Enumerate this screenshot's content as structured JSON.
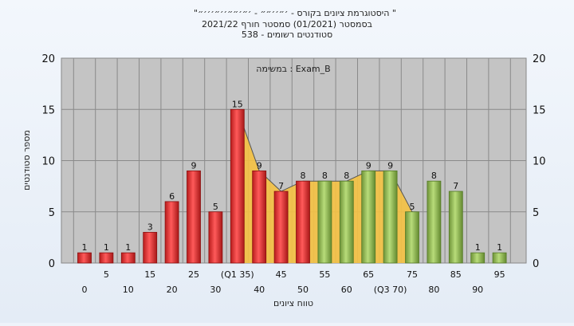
{
  "chart_data": {
    "type": "bar",
    "title_lines": [
      "\"היסטוגרמת ציונים בקורס - ׳״׳׳״״ - ׳״׳״״׳׳״׳׳׳״ \"",
      "בסמסטר  (01/2021)  סמסטר חורף  2021/22",
      "סטודנטים רשומים - 538"
    ],
    "annotation": "במשימה : Exam_B",
    "xlabel": "טווח ציונים",
    "ylabel": "מספר סטודנטים",
    "ylim": [
      0,
      20
    ],
    "y_ticks": [
      0,
      5,
      10,
      15,
      20
    ],
    "categories": [
      "0",
      "5",
      "10",
      "15",
      "20",
      "25",
      "30",
      "(Q1 35)",
      "40",
      "45",
      "50",
      "55",
      "60",
      "65",
      "(Q3 70)",
      "75",
      "80",
      "85",
      "90",
      "95"
    ],
    "values": [
      1,
      1,
      1,
      3,
      6,
      9,
      5,
      15,
      9,
      7,
      8,
      8,
      8,
      9,
      9,
      5,
      8,
      7,
      1,
      1
    ],
    "bar_colors": [
      "red",
      "red",
      "red",
      "red",
      "red",
      "red",
      "red",
      "red",
      "red",
      "red",
      "red",
      "green",
      "green",
      "green",
      "green",
      "green",
      "green",
      "green",
      "green",
      "green"
    ],
    "colors": {
      "red": "#e83a3a",
      "green": "#9bc25a",
      "plot_bg": "#c4c4c4",
      "area": "#f5c242",
      "line": "#555555"
    },
    "grid": true
  }
}
